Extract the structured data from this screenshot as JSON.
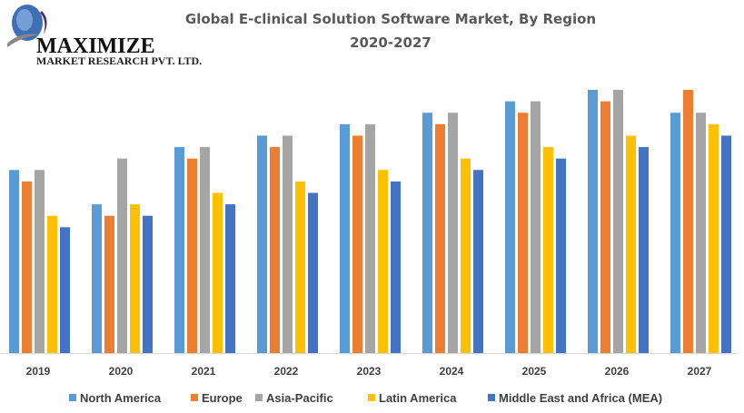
{
  "logo": {
    "line1": "MAXIMIZE",
    "line2": "MARKET RESEARCH PVT. LTD."
  },
  "chart_data": {
    "type": "bar",
    "title": "Global E-clinical Solution Software Market, By Region",
    "subtitle": "2020-2027",
    "categories": [
      "2019",
      "2020",
      "2021",
      "2022",
      "2023",
      "2024",
      "2025",
      "2026",
      "2027"
    ],
    "series": [
      {
        "name": "North America",
        "color": "#5B9BD5",
        "values": [
          16,
          13,
          18,
          19,
          20,
          21,
          22,
          23,
          21
        ]
      },
      {
        "name": "Europe",
        "color": "#ED7D31",
        "values": [
          15,
          12,
          17,
          18,
          19,
          20,
          21,
          22,
          23
        ]
      },
      {
        "name": "Asia-Pacific",
        "color": "#A5A5A5",
        "values": [
          16,
          17,
          18,
          19,
          20,
          21,
          22,
          23,
          21
        ]
      },
      {
        "name": "Latin America",
        "color": "#FFC000",
        "values": [
          12,
          13,
          14,
          15,
          16,
          17,
          18,
          19,
          20
        ]
      },
      {
        "name": "Middle East and Africa (MEA)",
        "color": "#4472C4",
        "values": [
          11,
          12,
          13,
          14,
          15,
          16,
          17,
          18,
          19
        ]
      }
    ],
    "ylim": [
      0,
      23
    ],
    "y_axis_visible": false,
    "grid": false,
    "legend": "bottom"
  }
}
